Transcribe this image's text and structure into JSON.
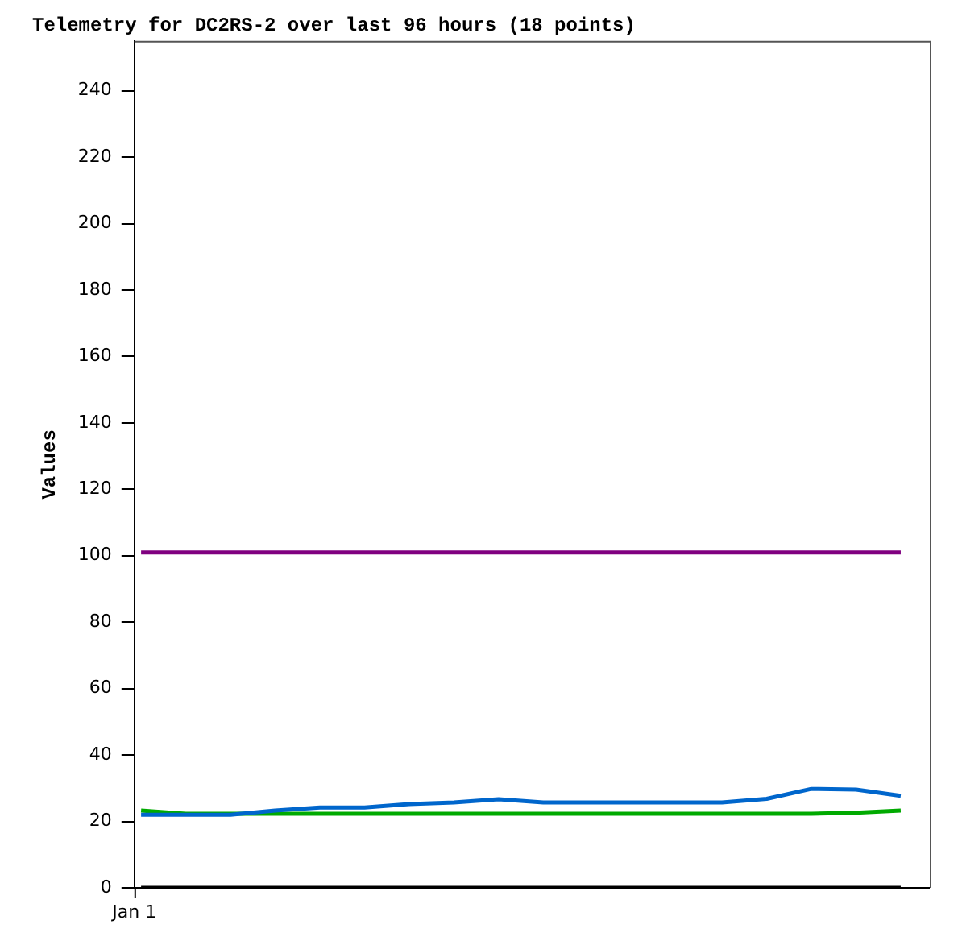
{
  "chart_data": {
    "type": "line",
    "title": "Telemetry for DC2RS-2 over last 96 hours (18 points)",
    "ylabel": "Values",
    "categories": [
      null,
      null,
      null,
      null,
      null,
      null,
      null,
      null,
      null,
      null,
      null,
      null,
      null,
      null,
      null,
      null,
      null,
      null
    ],
    "annotations": [
      "Jan 1"
    ],
    "ylim": [
      0,
      255
    ],
    "yticks": [
      0,
      20,
      40,
      60,
      80,
      100,
      120,
      140,
      160,
      180,
      200,
      220,
      240
    ],
    "grid": false,
    "legend": false,
    "marker": "none",
    "line_style": "solid",
    "series": [
      {
        "color": "#800080",
        "values": [
          101,
          101,
          101,
          101,
          101,
          101,
          101,
          101,
          101,
          101,
          101,
          101,
          101,
          101,
          101,
          101,
          101,
          101
        ]
      },
      {
        "color": "#0066cc",
        "values": [
          22,
          22,
          22,
          23.3,
          24.2,
          24.2,
          25.2,
          25.7,
          26.7,
          25.7,
          25.7,
          25.7,
          25.7,
          25.7,
          26.8,
          29.8,
          29.6,
          27.7
        ]
      },
      {
        "color": "#00aa00",
        "values": [
          23.3,
          22.3,
          22.3,
          22.3,
          22.3,
          22.3,
          22.3,
          22.3,
          22.3,
          22.3,
          22.3,
          22.3,
          22.3,
          22.3,
          22.3,
          22.3,
          22.6,
          23.3
        ]
      },
      {
        "color": "#000000",
        "values": [
          0,
          0,
          0,
          0,
          0,
          0,
          0,
          0,
          0,
          0,
          0,
          0,
          0,
          0,
          0,
          0,
          0,
          0
        ]
      }
    ]
  }
}
